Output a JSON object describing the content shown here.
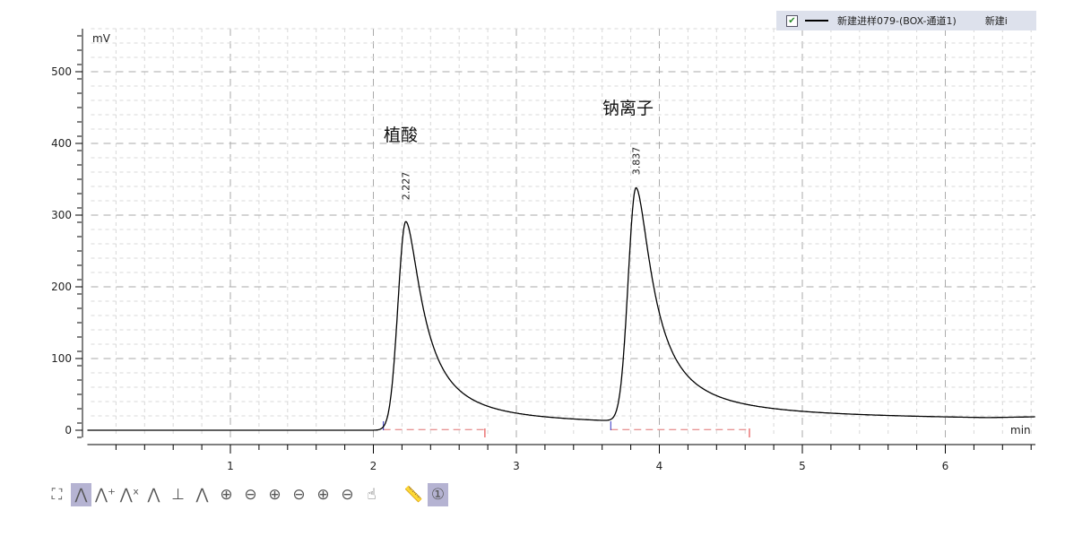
{
  "legend": {
    "checked": true,
    "series_label": "新建进样079-(BOX-通道1)",
    "series_label_2": "新建i"
  },
  "annotations": [
    {
      "text": "植酸",
      "x": 2.227
    },
    {
      "text": "钠离子",
      "x": 3.837
    }
  ],
  "toolbar": [
    {
      "name": "fit-all-icon",
      "glyph": "⛶",
      "active": false
    },
    {
      "name": "peak-icon",
      "glyph": "⋀",
      "active": true
    },
    {
      "name": "add-peak-icon",
      "glyph": "⋀⁺",
      "active": false
    },
    {
      "name": "delete-peak-icon",
      "glyph": "⋀ˣ",
      "active": false
    },
    {
      "name": "baseline-peak-icon",
      "glyph": "⋀",
      "active": false
    },
    {
      "name": "baseline-fill-icon",
      "glyph": "⊥",
      "active": false
    },
    {
      "name": "split-peak-icon",
      "glyph": "⋀",
      "active": false
    },
    {
      "name": "zoom-in-icon",
      "glyph": "⊕",
      "active": false
    },
    {
      "name": "zoom-out-icon",
      "glyph": "⊖",
      "active": false
    },
    {
      "name": "zoom-in-x-icon",
      "glyph": "⊕",
      "active": false
    },
    {
      "name": "zoom-out-x-icon",
      "glyph": "⊖",
      "active": false
    },
    {
      "name": "zoom-in-y-icon",
      "glyph": "⊕",
      "active": false
    },
    {
      "name": "zoom-out-y-icon",
      "glyph": "⊖",
      "active": false
    },
    {
      "name": "pan-hand-icon",
      "glyph": "☝",
      "active": false
    },
    {
      "name": "ruler-icon",
      "glyph": "📏",
      "active": false
    },
    {
      "name": "single-channel-icon",
      "glyph": "①",
      "active": true
    }
  ],
  "chart_data": {
    "type": "line",
    "ylabel": "mV",
    "xlabel": "min",
    "xlim": [
      0,
      6.63
    ],
    "ylim": [
      -10,
      560
    ],
    "xticks": [
      1,
      2,
      3,
      4,
      5,
      6
    ],
    "yticks": [
      0,
      100,
      200,
      300,
      400,
      500
    ],
    "grid": true,
    "peaks": [
      {
        "rt": 2.227,
        "label": "2.227",
        "height": 291,
        "start": 2.07,
        "end": 2.78
      },
      {
        "rt": 3.837,
        "label": "3.837",
        "height": 326,
        "start": 3.66,
        "end": 4.63
      }
    ],
    "colors": {
      "trace": "#000000",
      "baseline": "#e07070",
      "start_marker": "#3030c0",
      "end_marker": "#e03030"
    }
  }
}
